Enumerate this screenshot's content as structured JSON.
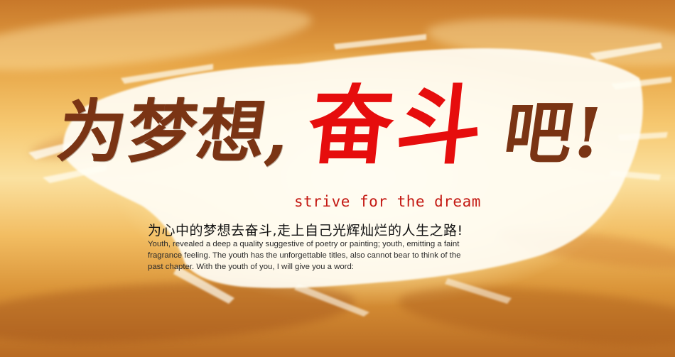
{
  "headline": {
    "part1": "为梦想,",
    "part2": "奋斗",
    "part3": "吧!"
  },
  "tagline_en": "strive for the dream",
  "tagline_cn": "为心中的梦想去奋斗,走上自己光辉灿烂的人生之路!",
  "body_lines": [
    "Youth, revealed a deep a quality suggestive of poetry or painting; youth, emitting a faint",
    "fragrance feeling. The youth has the unforgettable titles, also cannot bear to think of the",
    "past chapter. With the youth of you, I will give you a word:"
  ],
  "colors": {
    "headline_brown": "#7a3414",
    "headline_red": "#e60d0d",
    "tagline_red": "#c41a14",
    "brush_white": "#fffdf4"
  }
}
